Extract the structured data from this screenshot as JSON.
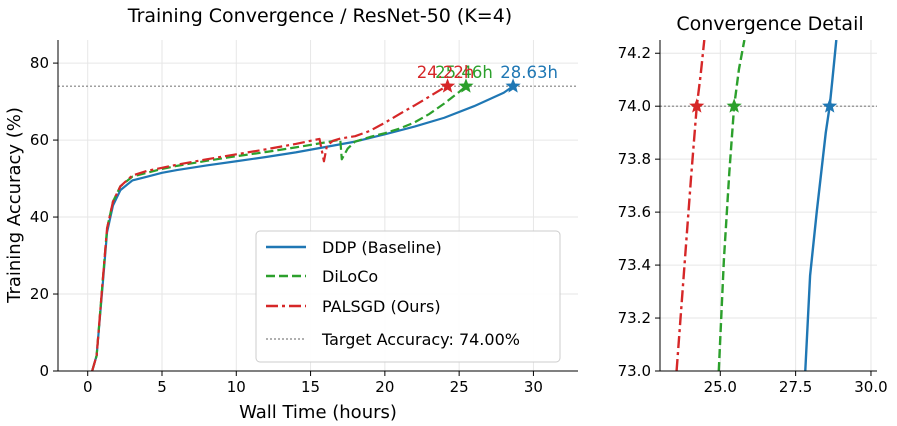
{
  "chart_data": [
    {
      "type": "line",
      "title": "Training Convergence / ResNet-50 (K=4)",
      "xlabel": "Wall Time (hours)",
      "ylabel": "Training Accuracy (%)",
      "xlim": [
        -2,
        33
      ],
      "ylim": [
        0,
        86
      ],
      "xticks": [
        0,
        5,
        10,
        15,
        20,
        25,
        30
      ],
      "yticks": [
        0,
        20,
        40,
        60,
        80
      ],
      "grid": true,
      "legend_position": "lower-right",
      "target": {
        "label": "Target Accuracy: 74.00%",
        "value": 74.0
      },
      "series": [
        {
          "name": "DDP (Baseline)",
          "color": "#1f77b4",
          "dash": "solid",
          "x": [
            0.3,
            0.6,
            1.0,
            1.3,
            1.7,
            2.2,
            3.0,
            4.0,
            5.0,
            6.0,
            8.0,
            10.0,
            12.0,
            14.0,
            16.0,
            18.0,
            20.0,
            22.0,
            24.0,
            26.0,
            28.0,
            28.63
          ],
          "y": [
            0,
            4,
            22,
            36,
            43,
            47,
            49.5,
            50.5,
            51.5,
            52.2,
            53.4,
            54.5,
            55.6,
            56.8,
            58.2,
            59.6,
            61.5,
            63.5,
            65.8,
            68.8,
            72.3,
            74.0
          ],
          "end_label": "28.63h",
          "end_x": 28.63,
          "end_y": 74.0
        },
        {
          "name": "DiLoCo",
          "color": "#2ca02c",
          "dash": "dashed",
          "x": [
            0.3,
            0.6,
            1.0,
            1.3,
            1.7,
            2.2,
            3.0,
            4.0,
            5.0,
            6.0,
            8.0,
            10.0,
            12.0,
            14.0,
            16.0,
            17.0,
            17.1,
            17.5,
            18.0,
            19.0,
            20.0,
            21.0,
            22.0,
            23.0,
            24.0,
            25.0,
            25.46
          ],
          "y": [
            0,
            4,
            23,
            37,
            44,
            48,
            50.5,
            51.5,
            52.5,
            53.3,
            54.6,
            55.8,
            56.9,
            58.1,
            59.4,
            60.1,
            55.0,
            57.8,
            59.6,
            60.8,
            61.8,
            63.0,
            64.6,
            66.8,
            69.5,
            72.5,
            74.0
          ],
          "end_label": "25.46h",
          "end_x": 25.46,
          "end_y": 74.0
        },
        {
          "name": "PALSGD (Ours)",
          "color": "#d62728",
          "dash": "dashdot",
          "x": [
            0.3,
            0.6,
            1.0,
            1.3,
            1.7,
            2.2,
            3.0,
            4.0,
            5.0,
            6.0,
            8.0,
            10.0,
            12.0,
            14.0,
            15.6,
            15.9,
            16.1,
            16.5,
            17.0,
            18.0,
            19.0,
            20.0,
            21.0,
            22.0,
            23.0,
            23.8,
            24.22
          ],
          "y": [
            0,
            4,
            23,
            37,
            44,
            48,
            50.8,
            52.0,
            52.8,
            53.6,
            55.0,
            56.3,
            57.6,
            59.0,
            60.3,
            54.5,
            58.5,
            59.8,
            60.4,
            61.0,
            62.4,
            64.5,
            66.8,
            69.0,
            71.3,
            73.2,
            74.0
          ],
          "end_label": "24.22h",
          "end_x": 24.22,
          "end_y": 74.0
        }
      ]
    },
    {
      "type": "line",
      "title": "Convergence Detail",
      "xlim": [
        23.0,
        30.2
      ],
      "ylim": [
        73.0,
        74.25
      ],
      "xticks": [
        "25.0",
        "27.5",
        "30.0"
      ],
      "yticks": [
        "73.0",
        "73.2",
        "73.4",
        "73.6",
        "73.8",
        "74.0",
        "74.2"
      ],
      "grid": true,
      "target_value": 74.0,
      "series": [
        {
          "name": "DDP (Baseline)",
          "x": [
            27.82,
            27.98,
            28.2,
            28.5,
            28.63,
            28.72,
            28.85
          ],
          "y": [
            73.0,
            73.36,
            73.6,
            73.9,
            74.0,
            74.1,
            74.25
          ]
        },
        {
          "name": "DiLoCo",
          "x": [
            24.95,
            25.12,
            25.3,
            25.46,
            25.62,
            25.8
          ],
          "y": [
            73.0,
            73.42,
            73.75,
            74.0,
            74.14,
            74.25
          ]
        },
        {
          "name": "PALSGD (Ours)",
          "x": [
            23.55,
            23.78,
            24.03,
            24.22,
            24.35,
            24.47
          ],
          "y": [
            73.0,
            73.35,
            73.73,
            74.0,
            74.12,
            74.25
          ]
        }
      ]
    }
  ]
}
